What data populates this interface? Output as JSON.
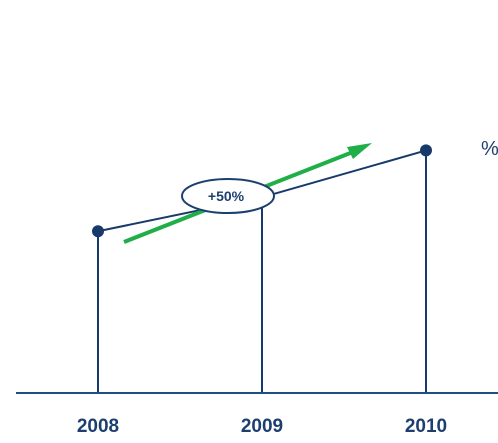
{
  "chart_data": {
    "type": "line",
    "categories": [
      "2008",
      "2009",
      "2010"
    ],
    "values": [
      1.0,
      1.21,
      1.5
    ],
    "ylim": [
      0,
      1.75
    ],
    "grid": false,
    "legend": "none",
    "annotations": {
      "growth_badge": "+50%",
      "edge_label": "%"
    },
    "colors": {
      "series": "#173a6a",
      "axis": "#1d4f86",
      "tick_labels": "#1d3f70",
      "arrow": "#1fae48",
      "badge_border": "#1d3f70"
    }
  }
}
